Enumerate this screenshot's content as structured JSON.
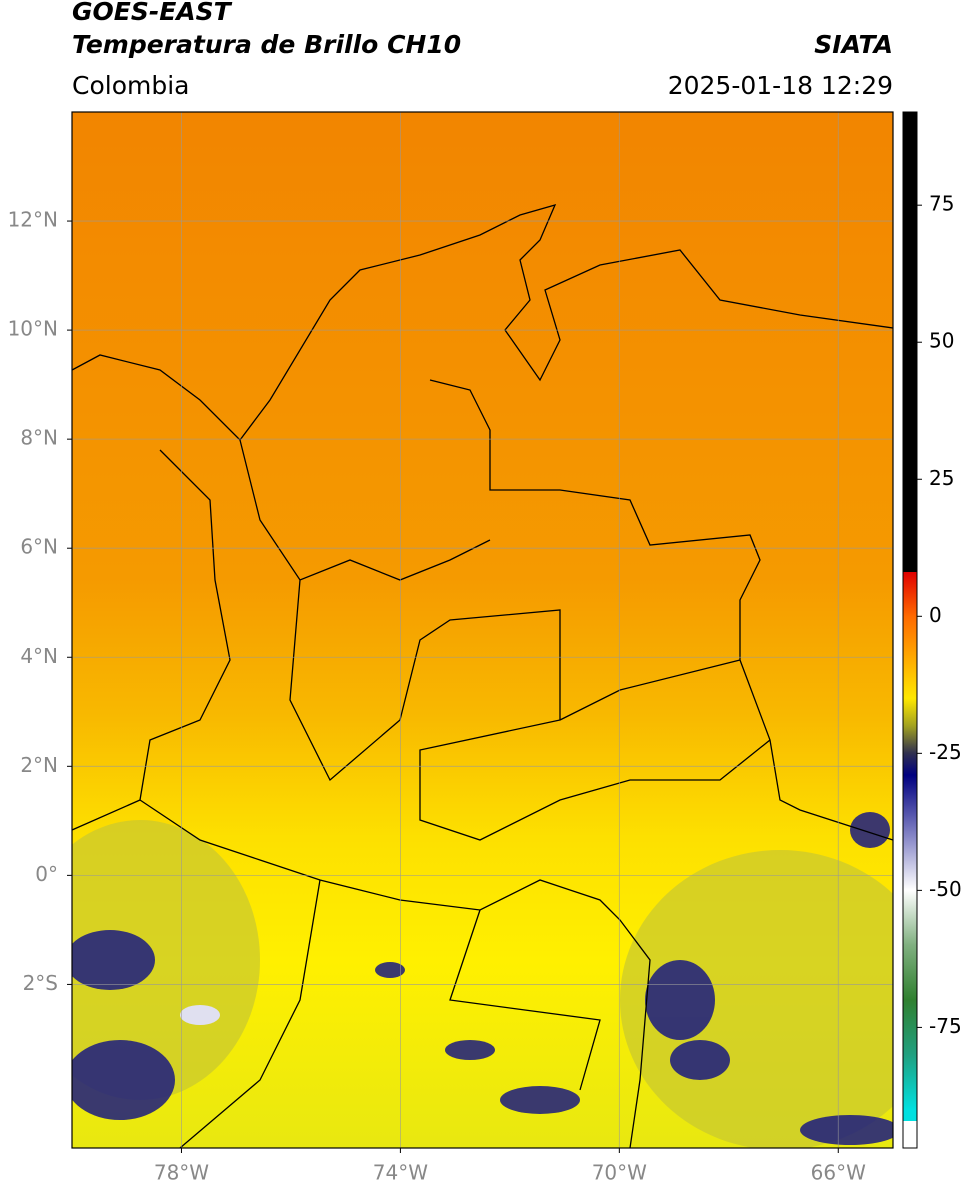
{
  "header": {
    "satellite": "GOES-EAST",
    "product": "Temperatura de Brillo CH10",
    "source": "SIATA",
    "region": "Colombia",
    "datetime": "2025-01-18 12:29"
  },
  "map": {
    "xlim": [
      -80,
      -65
    ],
    "ylim": [
      -5,
      14
    ],
    "xticks": [
      {
        "value": -78,
        "label": "78°W"
      },
      {
        "value": -74,
        "label": "74°W"
      },
      {
        "value": -70,
        "label": "70°W"
      },
      {
        "value": -66,
        "label": "66°W"
      }
    ],
    "yticks": [
      {
        "value": 12,
        "label": "12°N"
      },
      {
        "value": 10,
        "label": "10°N"
      },
      {
        "value": 8,
        "label": "8°N"
      },
      {
        "value": 6,
        "label": "6°N"
      },
      {
        "value": 4,
        "label": "4°N"
      },
      {
        "value": 2,
        "label": "2°N"
      },
      {
        "value": 0,
        "label": "0°"
      },
      {
        "value": -2,
        "label": "2°S"
      }
    ],
    "grid": true
  },
  "colorbar": {
    "range": [
      -97,
      92
    ],
    "ticks": [
      75,
      50,
      25,
      0,
      -25,
      -50,
      -75
    ]
  }
}
